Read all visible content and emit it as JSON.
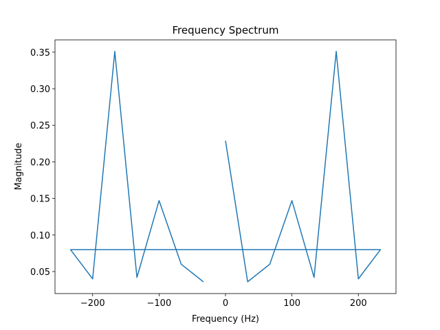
{
  "chart_data": {
    "type": "line",
    "title": "Frequency Spectrum",
    "x_label": "Frequency (Hz)",
    "y_label": "Magnitude",
    "x": [
      0,
      33.33,
      66.67,
      100,
      133.33,
      166.67,
      200,
      233.33,
      -233.33,
      -200,
      -166.67,
      -133.33,
      -100,
      -66.67,
      -33.33
    ],
    "series": [
      {
        "color": "#1f77b4",
        "values": [
          0.229,
          0.036,
          0.06,
          0.147,
          0.042,
          0.351,
          0.04,
          0.08,
          0.08,
          0.04,
          0.351,
          0.042,
          0.147,
          0.06,
          0.036
        ]
      }
    ],
    "xlim": [
      -256.67,
      256.67
    ],
    "xticks": [
      {
        "value": -200,
        "label": "−200"
      },
      {
        "value": -100,
        "label": "−100"
      },
      0,
      100,
      200
    ],
    "ylim": [
      0.0199,
      0.3668
    ],
    "yticks": [
      0.05,
      {
        "value": 0.1,
        "label": "0.10"
      },
      0.15,
      {
        "value": 0.2,
        "label": "0.20"
      },
      0.25,
      {
        "value": 0.3,
        "label": "0.30"
      },
      0.35
    ]
  }
}
